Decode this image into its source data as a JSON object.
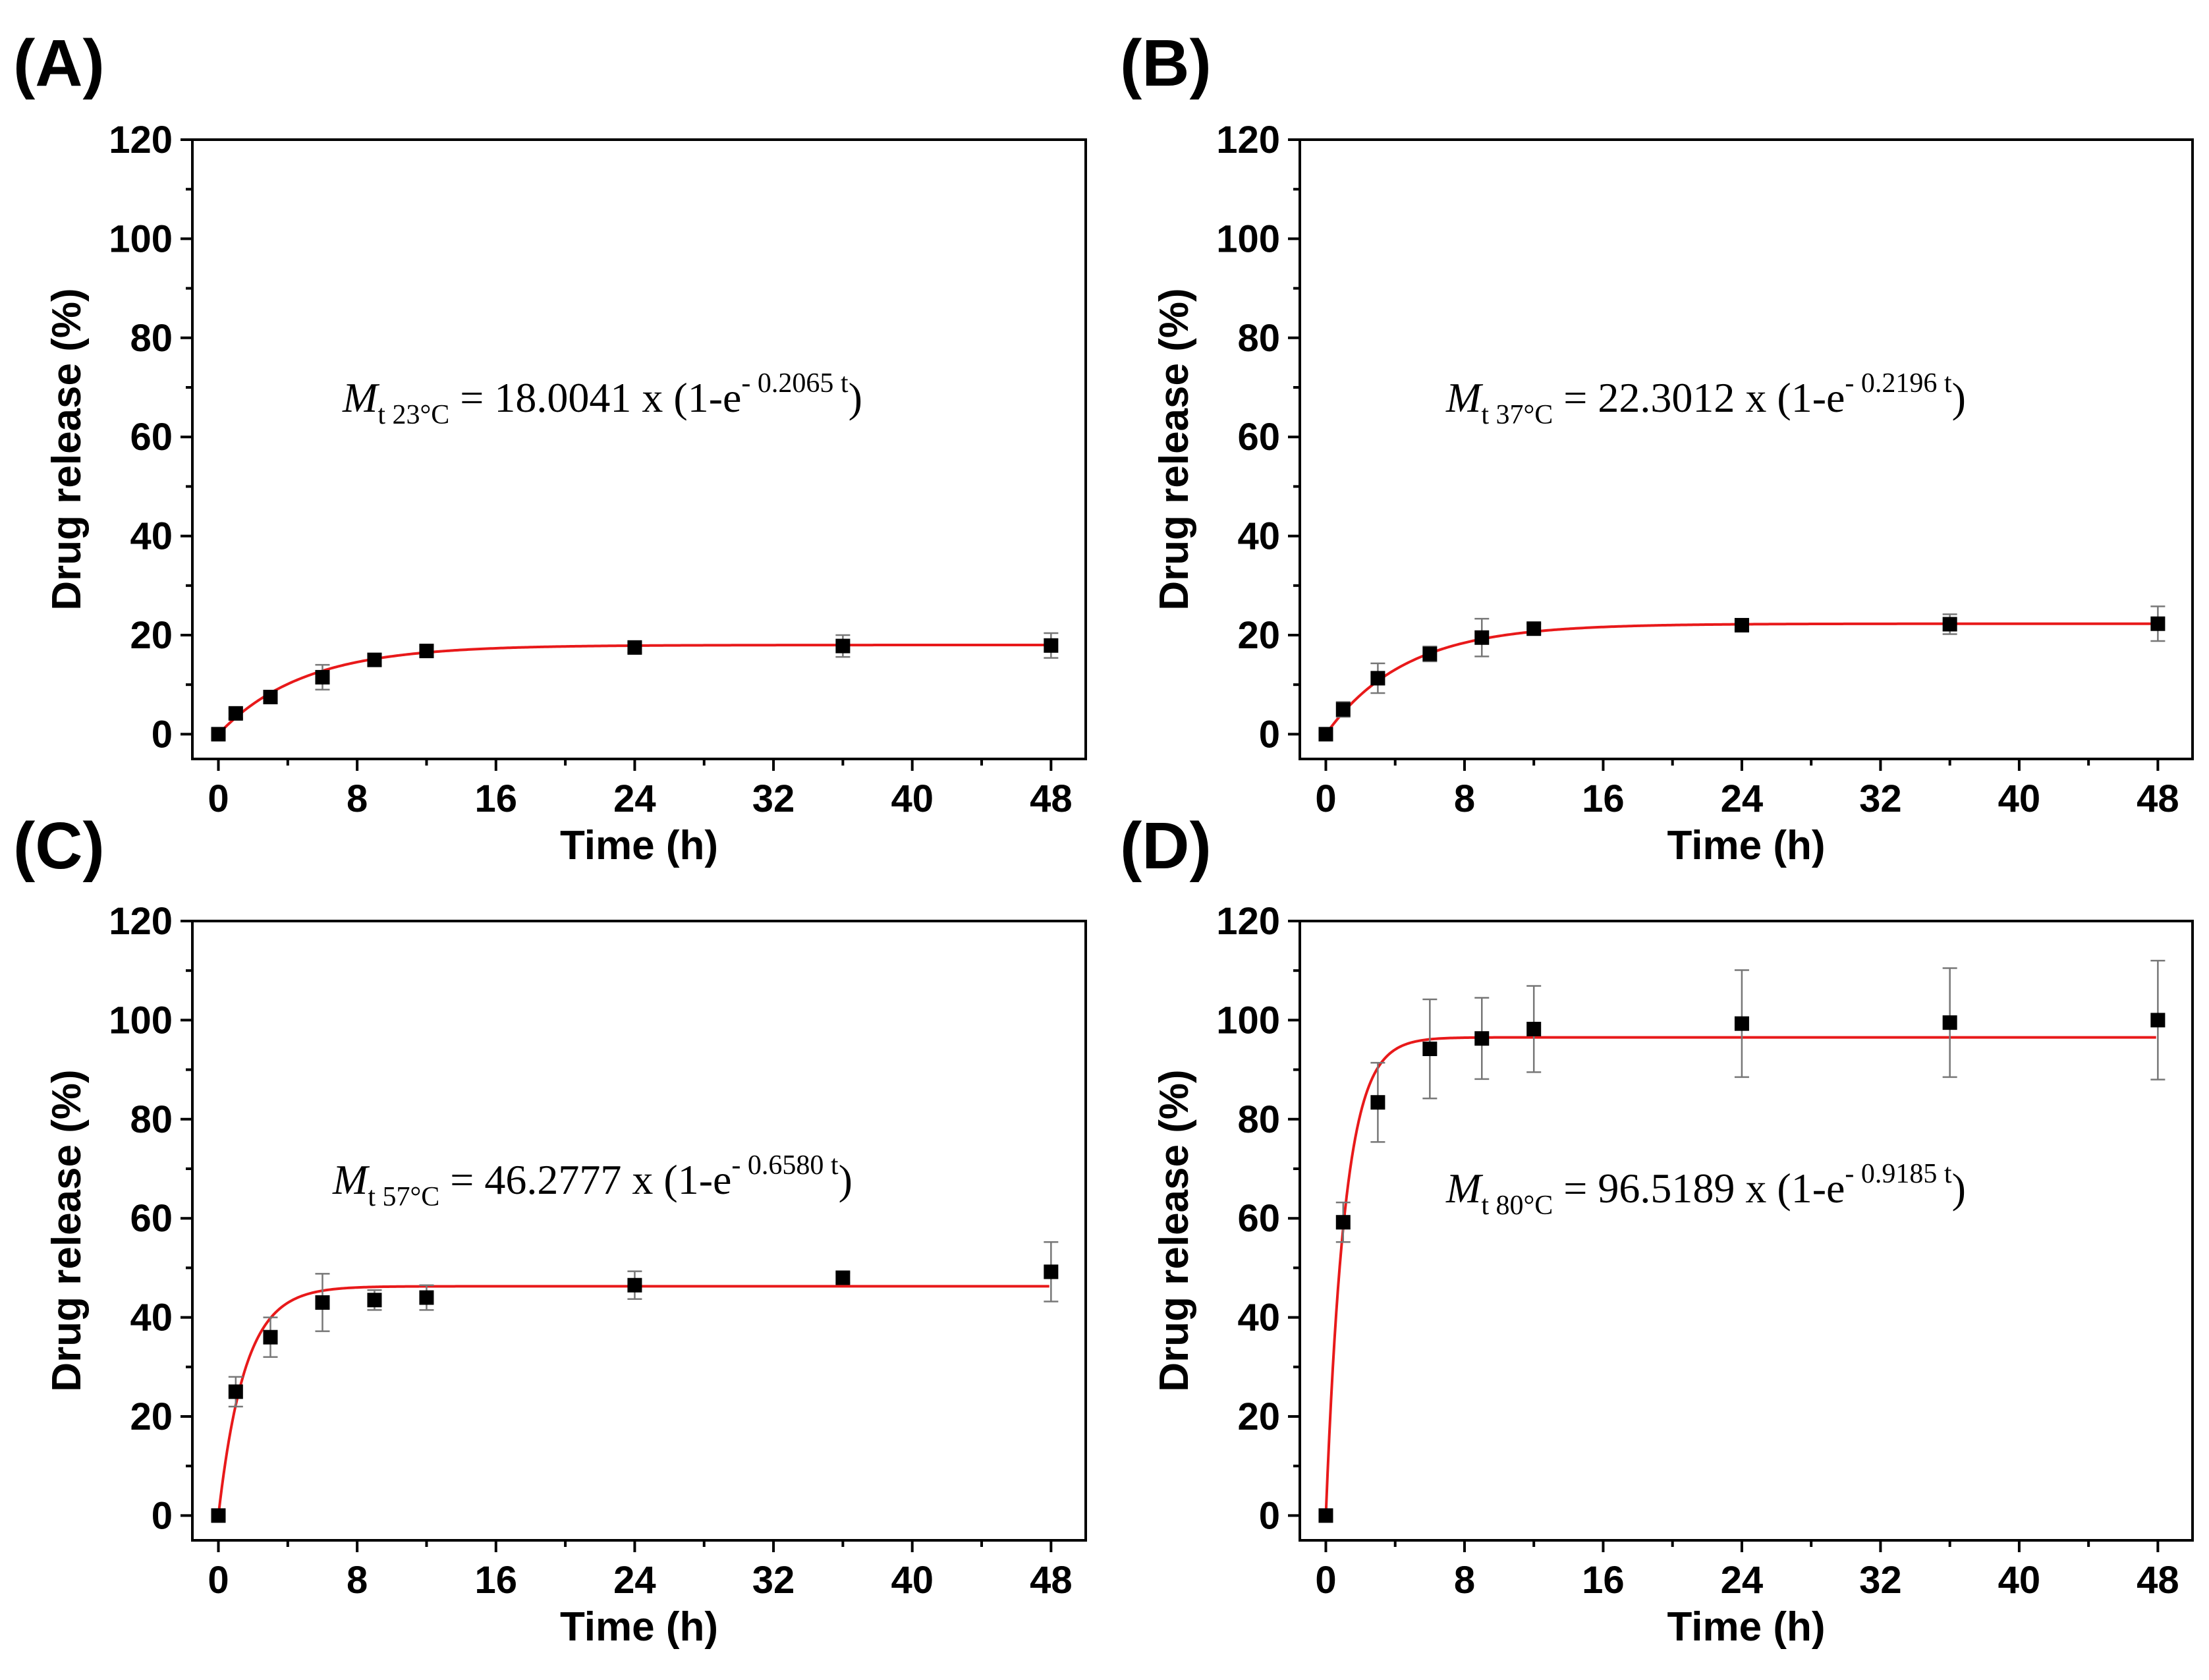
{
  "figure": {
    "colors": {
      "fit_line": "#e8191a",
      "markers": "#000000",
      "error_bars": "#777777",
      "axes": "#000000"
    }
  },
  "chart_data": [
    {
      "panel_label": "(A)",
      "type": "scatter",
      "xlabel": "Time (h)",
      "ylabel": "Drug release (%)",
      "xlim": [
        -1.5,
        50
      ],
      "ylim": [
        -5,
        120
      ],
      "xticks": [
        0,
        8,
        16,
        24,
        32,
        40,
        48
      ],
      "yticks": [
        0,
        20,
        40,
        60,
        80,
        100,
        120
      ],
      "x": [
        0,
        1,
        3,
        6,
        9,
        12,
        24,
        36,
        48
      ],
      "y": [
        0,
        4.2,
        7.5,
        11.5,
        15.0,
        16.8,
        17.5,
        17.8,
        17.9
      ],
      "error": [
        0,
        1.0,
        1.0,
        2.5,
        1.2,
        1.0,
        1.0,
        2.2,
        2.5
      ],
      "fit": {
        "model": "M(1-e^(-k t))",
        "M": 18.0041,
        "k": 0.2065
      },
      "equation": {
        "lhs": "M",
        "subscript": "t 23°C",
        "middle": " = 18.0041 x (1-e",
        "exponent": "- 0.2065 t",
        "tail": ")"
      }
    },
    {
      "panel_label": "(B)",
      "type": "scatter",
      "xlabel": "Time (h)",
      "ylabel": "Drug release (%)",
      "xlim": [
        -1.5,
        50
      ],
      "ylim": [
        -5,
        120
      ],
      "xticks": [
        0,
        8,
        16,
        24,
        32,
        40,
        48
      ],
      "yticks": [
        0,
        20,
        40,
        60,
        80,
        100,
        120
      ],
      "x": [
        0,
        1,
        3,
        6,
        9,
        12,
        24,
        36,
        48
      ],
      "y": [
        0,
        5.0,
        11.3,
        16.2,
        19.5,
        21.3,
        22.0,
        22.2,
        22.3
      ],
      "error": [
        0,
        1.5,
        3.0,
        1.5,
        3.8,
        1.0,
        1.0,
        2.0,
        3.5
      ],
      "fit": {
        "model": "M(1-e^(-k t))",
        "M": 22.3012,
        "k": 0.2196
      },
      "equation": {
        "lhs": "M",
        "subscript": "t 37°C",
        "middle": " = 22.3012 x (1-e",
        "exponent": "- 0.2196 t",
        "tail": ")"
      }
    },
    {
      "panel_label": "(C)",
      "type": "scatter",
      "xlabel": "Time (h)",
      "ylabel": "Drug release (%)",
      "xlim": [
        -1.5,
        50
      ],
      "ylim": [
        -5,
        120
      ],
      "xticks": [
        0,
        8,
        16,
        24,
        32,
        40,
        48
      ],
      "yticks": [
        0,
        20,
        40,
        60,
        80,
        100,
        120
      ],
      "x": [
        0,
        1,
        3,
        6,
        9,
        12,
        24,
        36,
        48
      ],
      "y": [
        0,
        25.0,
        36.0,
        43.0,
        43.5,
        44.0,
        46.5,
        48.0,
        49.2
      ],
      "error": [
        0,
        3.0,
        4.0,
        5.8,
        2.0,
        2.5,
        2.8,
        1.0,
        6.0
      ],
      "fit": {
        "model": "M(1-e^(-k t))",
        "M": 46.2777,
        "k": 0.658
      },
      "equation": {
        "lhs": "M",
        "subscript": "t 57°C",
        "middle": " = 46.2777 x (1-e",
        "exponent": "- 0.6580 t",
        "tail": ")"
      }
    },
    {
      "panel_label": "(D)",
      "type": "scatter",
      "xlabel": "Time (h)",
      "ylabel": "Drug release (%)",
      "xlim": [
        -1.5,
        50
      ],
      "ylim": [
        -5,
        120
      ],
      "xticks": [
        0,
        8,
        16,
        24,
        32,
        40,
        48
      ],
      "yticks": [
        0,
        20,
        40,
        60,
        80,
        100,
        120
      ],
      "x": [
        0,
        1,
        3,
        6,
        9,
        12,
        24,
        36,
        48
      ],
      "y": [
        0,
        59.2,
        83.4,
        94.2,
        96.3,
        98.2,
        99.3,
        99.5,
        100.0
      ],
      "error": [
        0,
        4.0,
        8.0,
        10.0,
        8.2,
        8.7,
        10.8,
        11.0,
        12.0
      ],
      "fit": {
        "model": "M(1-e^(-k t))",
        "M": 96.5189,
        "k": 0.9185
      },
      "equation": {
        "lhs": "M",
        "subscript": "t 80°C",
        "middle": " = 96.5189 x (1-e",
        "exponent": "- 0.9185 t",
        "tail": ")"
      }
    }
  ]
}
